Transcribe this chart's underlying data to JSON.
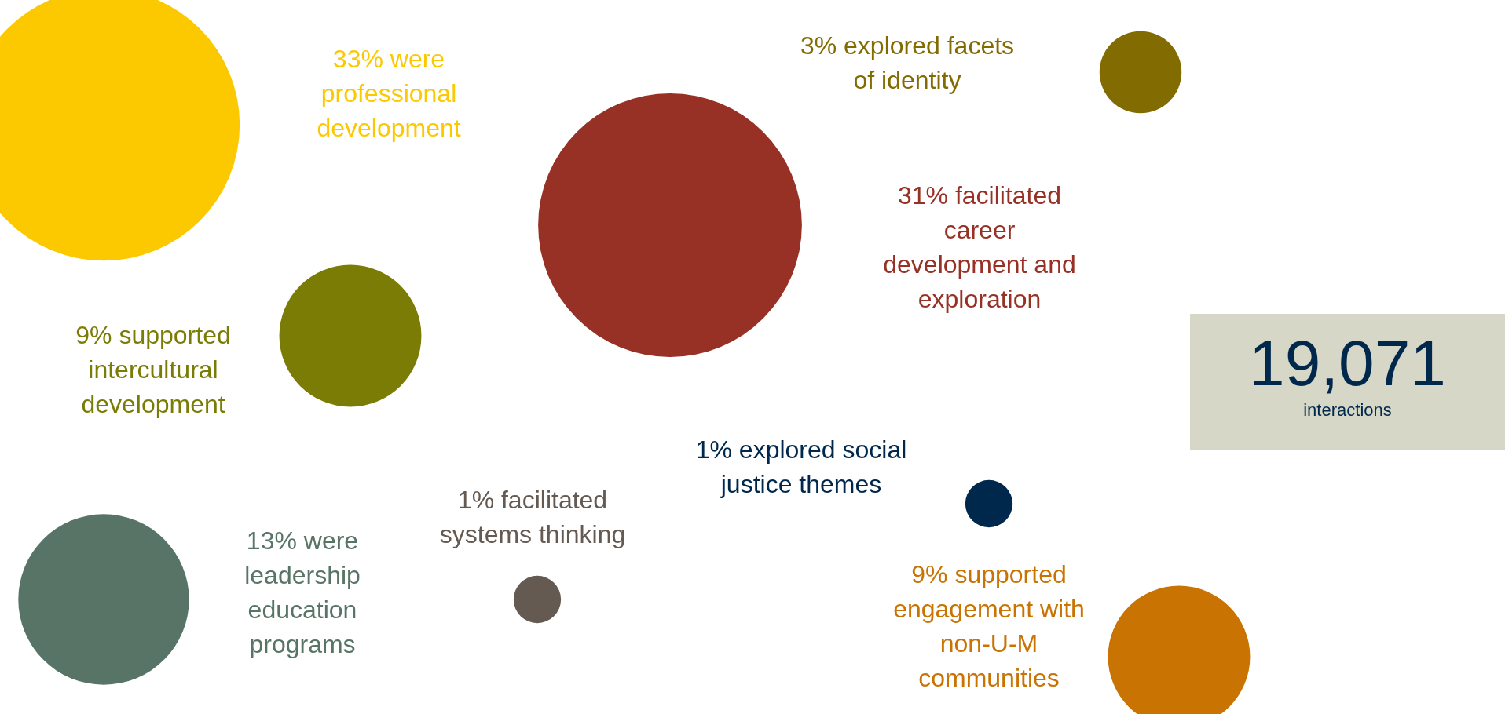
{
  "chart_data": {
    "type": "other",
    "categories": [
      "were professional development",
      "facilitated career development and exploration",
      "explored facets of identity",
      "supported intercultural development",
      "were leadership education programs",
      "facilitated systems thinking",
      "explored social justice themes",
      "supported engagement with non-U-M communities"
    ],
    "values": [
      33,
      31,
      3,
      9,
      13,
      1,
      1,
      9
    ],
    "value_labels": [
      "33%",
      "31%",
      "3%",
      "9%",
      "13%",
      "1%",
      "1%",
      "9%"
    ],
    "colors": [
      "#fcc800",
      "#973126",
      "#826b00",
      "#7a7c05",
      "#587466",
      "#655a52",
      "#00274c",
      "#c87302"
    ],
    "annotations": [
      "19,071",
      "interactions"
    ]
  }
}
